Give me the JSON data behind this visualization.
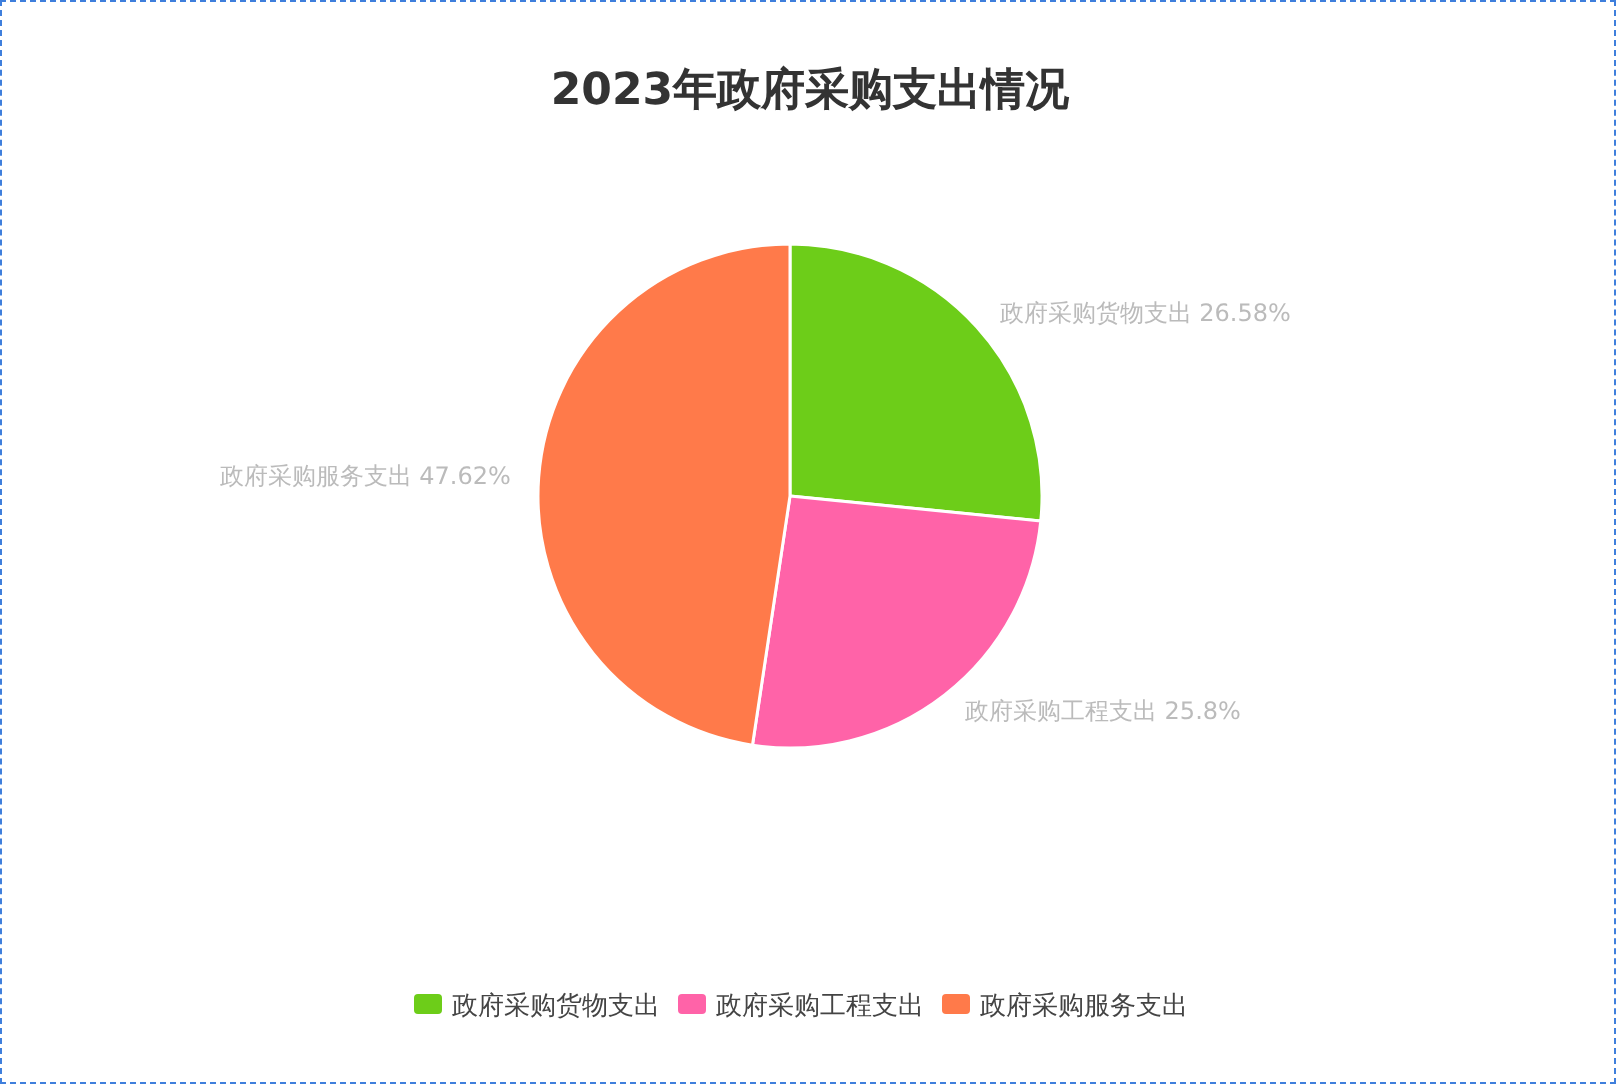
{
  "chart_data": {
    "type": "pie",
    "title": "2023年政府采购支出情况",
    "categories": [
      "政府采购货物支出",
      "政府采购工程支出",
      "政府采购服务支出"
    ],
    "values": [
      26.58,
      25.8,
      47.62
    ],
    "value_labels": [
      "26.58%",
      "25.8%",
      "47.62%"
    ],
    "colors": [
      "#6dcd19",
      "#ff63a8",
      "#ff7a4a"
    ],
    "legend": "bottom"
  }
}
